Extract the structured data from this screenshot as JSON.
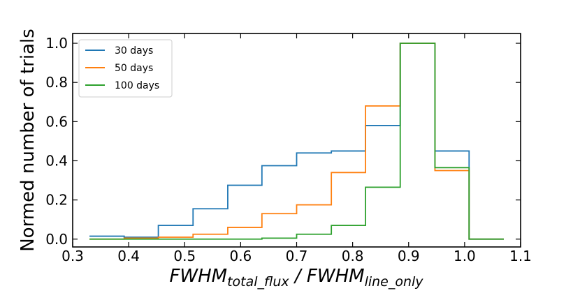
{
  "chart_data": {
    "type": "histogram-step",
    "xlabel": {
      "main": "FWHM",
      "sub1": "total_flux",
      "sep": " / FWHM",
      "sub2": "line_only"
    },
    "ylabel": "Normed number of trials",
    "xlim": [
      0.3,
      1.1
    ],
    "ylim": [
      -0.04,
      1.05
    ],
    "xticks": [
      0.3,
      0.4,
      0.5,
      0.6,
      0.7,
      0.8,
      0.9,
      1.0,
      1.1
    ],
    "xtick_labels": [
      "0.3",
      "0.4",
      "0.5",
      "0.6",
      "0.7",
      "0.8",
      "0.9",
      "1.0",
      "1.1"
    ],
    "yticks": [
      0.0,
      0.2,
      0.4,
      0.6,
      0.8,
      1.0
    ],
    "ytick_labels": [
      "0.0",
      "0.2",
      "0.4",
      "0.6",
      "0.8",
      "1.0"
    ],
    "legend_position": "upper-left",
    "bin_edges": [
      0.33,
      0.392,
      0.453,
      0.515,
      0.577,
      0.638,
      0.7,
      0.762,
      0.823,
      0.885,
      0.947,
      1.008,
      1.07
    ],
    "series": [
      {
        "name": "30 days",
        "color": "#1f77b4",
        "values": [
          0.015,
          0.01,
          0.07,
          0.155,
          0.275,
          0.375,
          0.44,
          0.45,
          0.58,
          1.0,
          0.45,
          0.0
        ]
      },
      {
        "name": "50 days",
        "color": "#ff7f0e",
        "values": [
          0.0,
          0.005,
          0.01,
          0.025,
          0.06,
          0.13,
          0.175,
          0.34,
          0.68,
          1.0,
          0.35,
          0.0
        ]
      },
      {
        "name": "100 days",
        "color": "#2ca02c",
        "values": [
          0.0,
          0.0,
          0.0,
          0.0,
          0.0,
          0.005,
          0.025,
          0.07,
          0.265,
          1.0,
          0.365,
          0.0
        ]
      }
    ]
  }
}
